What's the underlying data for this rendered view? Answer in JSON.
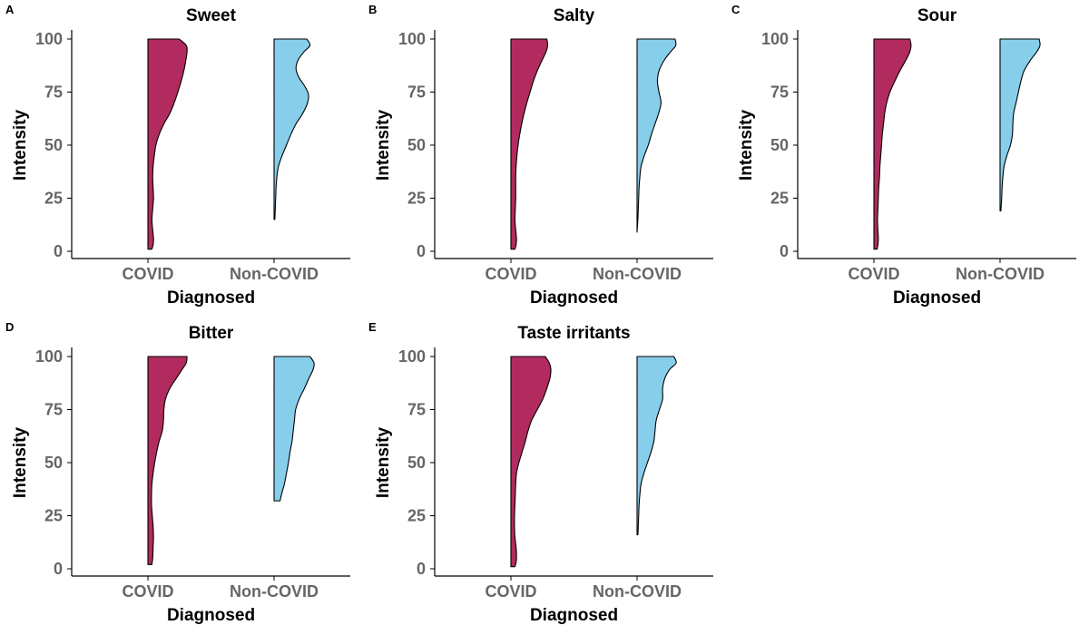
{
  "chart_data": [
    {
      "panel": "A",
      "title": "Sweet",
      "type": "half-violin",
      "xlabel": "Diagnosed",
      "ylabel": "Intensity",
      "categories": [
        "COVID",
        "Non-COVID"
      ],
      "y_ticks": [
        0,
        25,
        50,
        75,
        100
      ],
      "ylim": [
        0,
        100
      ],
      "colors": {
        "COVID": "#B22B5E",
        "Non-COVID": "#87CEEB"
      },
      "series": [
        {
          "category": "COVID",
          "y_range": [
            1,
            100
          ],
          "profile": [
            [
              1,
              0.1
            ],
            [
              3,
              0.13
            ],
            [
              6,
              0.14
            ],
            [
              10,
              0.12
            ],
            [
              15,
              0.1
            ],
            [
              20,
              0.12
            ],
            [
              25,
              0.14
            ],
            [
              30,
              0.13
            ],
            [
              35,
              0.12
            ],
            [
              40,
              0.13
            ],
            [
              45,
              0.16
            ],
            [
              50,
              0.2
            ],
            [
              55,
              0.28
            ],
            [
              60,
              0.4
            ],
            [
              65,
              0.55
            ],
            [
              70,
              0.66
            ],
            [
              75,
              0.75
            ],
            [
              80,
              0.83
            ],
            [
              85,
              0.9
            ],
            [
              90,
              0.95
            ],
            [
              94,
              0.98
            ],
            [
              97,
              0.96
            ],
            [
              100,
              0.78
            ]
          ]
        },
        {
          "category": "Non-COVID",
          "y_range": [
            15,
            100
          ],
          "profile": [
            [
              15,
              0.02
            ],
            [
              20,
              0.03
            ],
            [
              25,
              0.04
            ],
            [
              30,
              0.05
            ],
            [
              35,
              0.07
            ],
            [
              40,
              0.11
            ],
            [
              45,
              0.2
            ],
            [
              50,
              0.31
            ],
            [
              55,
              0.42
            ],
            [
              60,
              0.55
            ],
            [
              65,
              0.72
            ],
            [
              70,
              0.84
            ],
            [
              74,
              0.86
            ],
            [
              78,
              0.76
            ],
            [
              82,
              0.62
            ],
            [
              86,
              0.55
            ],
            [
              90,
              0.6
            ],
            [
              94,
              0.75
            ],
            [
              97,
              0.9
            ],
            [
              100,
              0.82
            ]
          ]
        }
      ]
    },
    {
      "panel": "B",
      "title": "Salty",
      "type": "half-violin",
      "xlabel": "Diagnosed",
      "ylabel": "Intensity",
      "categories": [
        "COVID",
        "Non-COVID"
      ],
      "y_ticks": [
        0,
        25,
        50,
        75,
        100
      ],
      "ylim": [
        0,
        100
      ],
      "colors": {
        "COVID": "#B22B5E",
        "Non-COVID": "#87CEEB"
      },
      "series": [
        {
          "category": "COVID",
          "y_range": [
            1,
            100
          ],
          "profile": [
            [
              1,
              0.1
            ],
            [
              3,
              0.13
            ],
            [
              6,
              0.14
            ],
            [
              10,
              0.12
            ],
            [
              15,
              0.1
            ],
            [
              20,
              0.11
            ],
            [
              25,
              0.12
            ],
            [
              30,
              0.12
            ],
            [
              35,
              0.12
            ],
            [
              40,
              0.13
            ],
            [
              45,
              0.15
            ],
            [
              50,
              0.18
            ],
            [
              55,
              0.22
            ],
            [
              60,
              0.27
            ],
            [
              65,
              0.33
            ],
            [
              70,
              0.4
            ],
            [
              75,
              0.48
            ],
            [
              80,
              0.56
            ],
            [
              85,
              0.66
            ],
            [
              90,
              0.78
            ],
            [
              94,
              0.88
            ],
            [
              97,
              0.92
            ],
            [
              100,
              0.9
            ]
          ]
        },
        {
          "category": "Non-COVID",
          "y_range": [
            9,
            100
          ],
          "profile": [
            [
              9,
              0.0
            ],
            [
              15,
              0.02
            ],
            [
              20,
              0.03
            ],
            [
              25,
              0.04
            ],
            [
              30,
              0.05
            ],
            [
              35,
              0.07
            ],
            [
              40,
              0.1
            ],
            [
              45,
              0.18
            ],
            [
              50,
              0.28
            ],
            [
              55,
              0.36
            ],
            [
              60,
              0.45
            ],
            [
              65,
              0.54
            ],
            [
              70,
              0.6
            ],
            [
              75,
              0.55
            ],
            [
              80,
              0.51
            ],
            [
              85,
              0.55
            ],
            [
              90,
              0.68
            ],
            [
              94,
              0.84
            ],
            [
              97,
              0.97
            ],
            [
              100,
              0.95
            ]
          ]
        }
      ]
    },
    {
      "panel": "C",
      "title": "Sour",
      "type": "half-violin",
      "xlabel": "Diagnosed",
      "ylabel": "Intensity",
      "categories": [
        "COVID",
        "Non-COVID"
      ],
      "y_ticks": [
        0,
        25,
        50,
        75,
        100
      ],
      "ylim": [
        0,
        100
      ],
      "colors": {
        "COVID": "#B22B5E",
        "Non-COVID": "#87CEEB"
      },
      "series": [
        {
          "category": "COVID",
          "y_range": [
            1,
            100
          ],
          "profile": [
            [
              1,
              0.08
            ],
            [
              3,
              0.1
            ],
            [
              6,
              0.11
            ],
            [
              10,
              0.1
            ],
            [
              15,
              0.09
            ],
            [
              20,
              0.1
            ],
            [
              25,
              0.11
            ],
            [
              30,
              0.12
            ],
            [
              35,
              0.14
            ],
            [
              40,
              0.15
            ],
            [
              45,
              0.17
            ],
            [
              50,
              0.19
            ],
            [
              55,
              0.21
            ],
            [
              60,
              0.24
            ],
            [
              65,
              0.27
            ],
            [
              70,
              0.32
            ],
            [
              75,
              0.4
            ],
            [
              80,
              0.52
            ],
            [
              85,
              0.65
            ],
            [
              90,
              0.8
            ],
            [
              94,
              0.9
            ],
            [
              97,
              0.93
            ],
            [
              100,
              0.9
            ]
          ]
        },
        {
          "category": "Non-COVID",
          "y_range": [
            19,
            100
          ],
          "profile": [
            [
              19,
              0.02
            ],
            [
              25,
              0.04
            ],
            [
              30,
              0.05
            ],
            [
              35,
              0.07
            ],
            [
              40,
              0.1
            ],
            [
              45,
              0.17
            ],
            [
              50,
              0.26
            ],
            [
              55,
              0.31
            ],
            [
              60,
              0.32
            ],
            [
              65,
              0.34
            ],
            [
              70,
              0.4
            ],
            [
              75,
              0.46
            ],
            [
              80,
              0.52
            ],
            [
              85,
              0.6
            ],
            [
              90,
              0.76
            ],
            [
              94,
              0.92
            ],
            [
              97,
              1.0
            ],
            [
              100,
              0.98
            ]
          ]
        }
      ]
    },
    {
      "panel": "D",
      "title": "Bitter",
      "type": "half-violin",
      "xlabel": "Diagnosed",
      "ylabel": "Intensity",
      "categories": [
        "COVID",
        "Non-COVID"
      ],
      "y_ticks": [
        0,
        25,
        50,
        75,
        100
      ],
      "ylim": [
        0,
        100
      ],
      "colors": {
        "COVID": "#B22B5E",
        "Non-COVID": "#87CEEB"
      },
      "series": [
        {
          "category": "COVID",
          "y_range": [
            2,
            100
          ],
          "profile": [
            [
              2,
              0.1
            ],
            [
              5,
              0.12
            ],
            [
              10,
              0.13
            ],
            [
              15,
              0.14
            ],
            [
              20,
              0.13
            ],
            [
              25,
              0.11
            ],
            [
              30,
              0.09
            ],
            [
              35,
              0.09
            ],
            [
              40,
              0.1
            ],
            [
              45,
              0.13
            ],
            [
              50,
              0.17
            ],
            [
              55,
              0.22
            ],
            [
              60,
              0.28
            ],
            [
              65,
              0.36
            ],
            [
              70,
              0.39
            ],
            [
              75,
              0.4
            ],
            [
              80,
              0.44
            ],
            [
              85,
              0.55
            ],
            [
              90,
              0.72
            ],
            [
              94,
              0.86
            ],
            [
              97,
              0.96
            ],
            [
              100,
              0.98
            ]
          ]
        },
        {
          "category": "Non-COVID",
          "y_range": [
            32,
            100
          ],
          "profile": [
            [
              32,
              0.15
            ],
            [
              36,
              0.2
            ],
            [
              40,
              0.26
            ],
            [
              45,
              0.31
            ],
            [
              50,
              0.36
            ],
            [
              55,
              0.4
            ],
            [
              60,
              0.45
            ],
            [
              65,
              0.48
            ],
            [
              70,
              0.51
            ],
            [
              75,
              0.54
            ],
            [
              80,
              0.63
            ],
            [
              85,
              0.76
            ],
            [
              90,
              0.88
            ],
            [
              94,
              0.98
            ],
            [
              97,
              1.0
            ],
            [
              100,
              0.9
            ]
          ]
        }
      ]
    },
    {
      "panel": "E",
      "title": "Taste irritants",
      "type": "half-violin",
      "xlabel": "Diagnosed",
      "ylabel": "Intensity",
      "categories": [
        "COVID",
        "Non-COVID"
      ],
      "y_ticks": [
        0,
        25,
        50,
        75,
        100
      ],
      "ylim": [
        0,
        100
      ],
      "colors": {
        "COVID": "#B22B5E",
        "Non-COVID": "#87CEEB"
      },
      "series": [
        {
          "category": "COVID",
          "y_range": [
            1,
            100
          ],
          "profile": [
            [
              1,
              0.1
            ],
            [
              3,
              0.13
            ],
            [
              6,
              0.14
            ],
            [
              10,
              0.13
            ],
            [
              15,
              0.1
            ],
            [
              20,
              0.09
            ],
            [
              25,
              0.09
            ],
            [
              30,
              0.1
            ],
            [
              35,
              0.11
            ],
            [
              40,
              0.12
            ],
            [
              45,
              0.14
            ],
            [
              50,
              0.2
            ],
            [
              55,
              0.28
            ],
            [
              60,
              0.36
            ],
            [
              65,
              0.43
            ],
            [
              70,
              0.52
            ],
            [
              75,
              0.66
            ],
            [
              80,
              0.8
            ],
            [
              85,
              0.9
            ],
            [
              90,
              0.98
            ],
            [
              94,
              1.0
            ],
            [
              97,
              0.96
            ],
            [
              100,
              0.86
            ]
          ]
        },
        {
          "category": "Non-COVID",
          "y_range": [
            16,
            100
          ],
          "profile": [
            [
              16,
              0.02
            ],
            [
              20,
              0.03
            ],
            [
              25,
              0.04
            ],
            [
              30,
              0.05
            ],
            [
              35,
              0.07
            ],
            [
              40,
              0.1
            ],
            [
              45,
              0.17
            ],
            [
              50,
              0.26
            ],
            [
              55,
              0.35
            ],
            [
              60,
              0.42
            ],
            [
              65,
              0.45
            ],
            [
              70,
              0.48
            ],
            [
              75,
              0.56
            ],
            [
              80,
              0.64
            ],
            [
              85,
              0.64
            ],
            [
              90,
              0.7
            ],
            [
              94,
              0.82
            ],
            [
              97,
              0.98
            ],
            [
              100,
              0.92
            ]
          ]
        }
      ]
    }
  ]
}
